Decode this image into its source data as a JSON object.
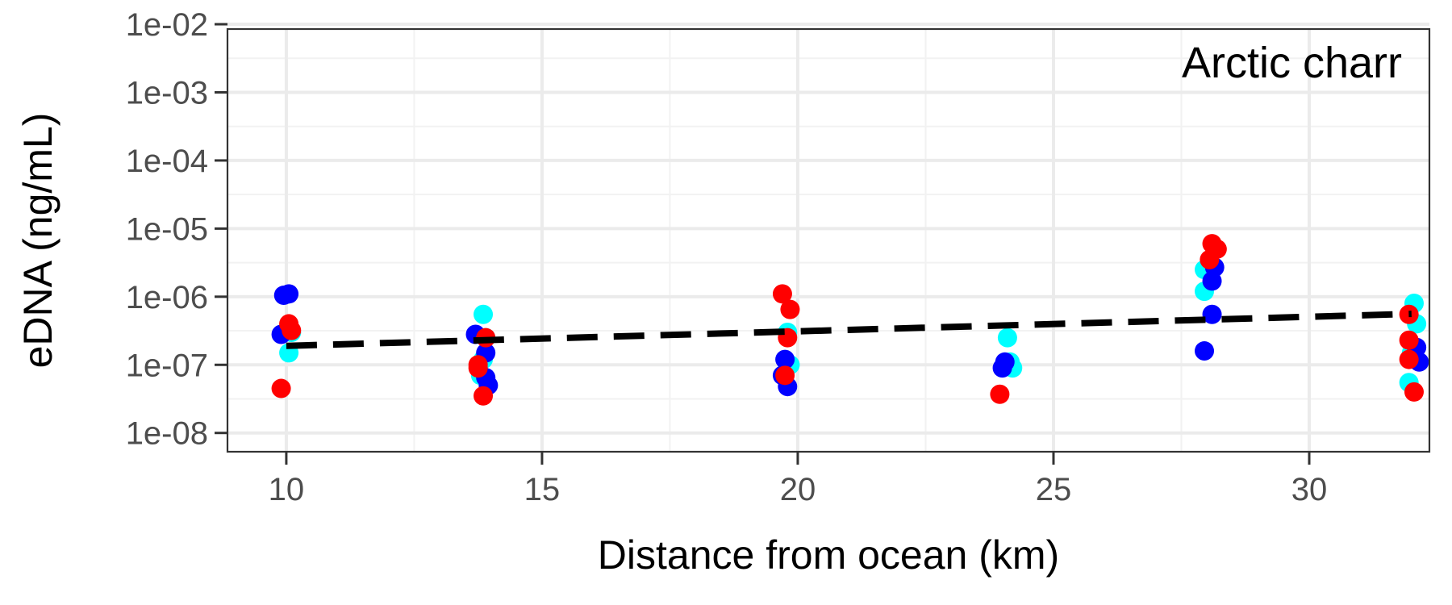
{
  "chart_data": {
    "type": "scatter",
    "title": "",
    "panel_label": "Arctic charr",
    "xlabel": "Distance from ocean (km)",
    "ylabel": "eDNA (ng/mL)",
    "x_scale": "linear",
    "y_scale": "log10",
    "xlim": [
      8.85,
      32.35
    ],
    "ylim": [
      5.3e-09,
      0.0085
    ],
    "x_ticks": [
      10,
      15,
      20,
      25,
      30
    ],
    "x_tick_labels": [
      "10",
      "15",
      "20",
      "25",
      "30"
    ],
    "y_ticks": [
      1e-08,
      1e-07,
      1e-06,
      1e-05,
      0.0001,
      0.001,
      0.01
    ],
    "y_tick_labels": [
      "1e-08",
      "1e-07",
      "1e-06",
      "1e-05",
      "1e-04",
      "1e-03",
      "1e-02"
    ],
    "grid": true,
    "legend": "none",
    "colors": {
      "panel_border": "#333333",
      "grid_major": "#ebebeb",
      "grid_minor": "#f2f2f2",
      "trend": "#000000"
    },
    "series": [
      {
        "color": "#00ffff",
        "points": [
          [
            10.05,
            1.5e-07
          ],
          [
            10.1,
            3e-07
          ],
          [
            13.85,
            5.5e-07
          ],
          [
            13.9,
            2.5e-07
          ],
          [
            13.85,
            1.2e-07
          ],
          [
            13.8,
            7e-08
          ],
          [
            19.8,
            3e-07
          ],
          [
            19.85,
            1e-07
          ],
          [
            24.1,
            2.5e-07
          ],
          [
            24.15,
            1.1e-07
          ],
          [
            24.2,
            9e-08
          ],
          [
            27.95,
            2.5e-06
          ],
          [
            27.95,
            1.2e-06
          ],
          [
            28.05,
            3e-06
          ],
          [
            32.05,
            8e-07
          ],
          [
            32.1,
            4e-07
          ],
          [
            32.0,
            1.5e-07
          ],
          [
            31.95,
            5.5e-08
          ]
        ]
      },
      {
        "color": "#0000ff",
        "points": [
          [
            9.9,
            2.8e-07
          ],
          [
            9.95,
            1.05e-06
          ],
          [
            10.05,
            1.1e-06
          ],
          [
            13.7,
            2.8e-07
          ],
          [
            13.9,
            1.5e-07
          ],
          [
            13.9,
            6.5e-08
          ],
          [
            13.95,
            5e-08
          ],
          [
            19.75,
            1.2e-07
          ],
          [
            19.7,
            7e-08
          ],
          [
            19.8,
            4.8e-08
          ],
          [
            24.0,
            9e-08
          ],
          [
            24.05,
            1.1e-07
          ],
          [
            27.95,
            1.6e-07
          ],
          [
            28.1,
            5.5e-07
          ],
          [
            28.1,
            1.7e-06
          ],
          [
            28.15,
            2.7e-06
          ],
          [
            32.1,
            1.8e-07
          ],
          [
            32.15,
            1.1e-07
          ]
        ]
      },
      {
        "color": "#ff0000",
        "points": [
          [
            9.9,
            4.5e-08
          ],
          [
            10.05,
            4e-07
          ],
          [
            10.1,
            3.2e-07
          ],
          [
            13.75,
            1e-07
          ],
          [
            13.75,
            9e-08
          ],
          [
            13.9,
            2.5e-07
          ],
          [
            13.85,
            3.5e-08
          ],
          [
            19.7,
            1.1e-06
          ],
          [
            19.85,
            6.5e-07
          ],
          [
            19.8,
            2.5e-07
          ],
          [
            19.75,
            7e-08
          ],
          [
            23.95,
            3.7e-08
          ],
          [
            28.05,
            3.5e-06
          ],
          [
            28.1,
            6e-06
          ],
          [
            28.2,
            5e-06
          ],
          [
            31.95,
            5.5e-07
          ],
          [
            31.95,
            2.3e-07
          ],
          [
            31.95,
            1.2e-07
          ],
          [
            32.05,
            4e-08
          ]
        ]
      }
    ],
    "trend_line": {
      "style": "dashed",
      "x": [
        10,
        32
      ],
      "y": [
        1.9e-07,
        5.6e-07
      ]
    }
  }
}
